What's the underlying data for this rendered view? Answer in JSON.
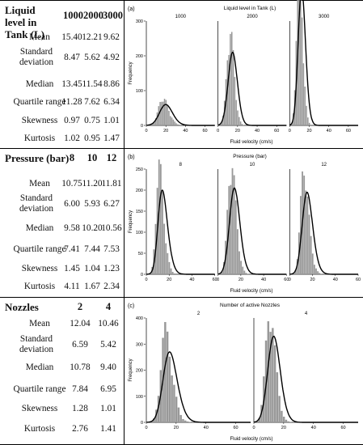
{
  "panels": [
    {
      "id": "tank",
      "table": {
        "header": "Liquid level in Tank (L)",
        "columns": [
          "1000",
          "2000",
          "3000"
        ],
        "rows": [
          {
            "label": "Mean",
            "values": [
              "15.40",
              "12.21",
              "9.62"
            ]
          },
          {
            "label": "Standard deviation",
            "values": [
              "8.47",
              "5.62",
              "4.92"
            ]
          },
          {
            "label": "Median",
            "values": [
              "13.45",
              "11.54",
              "8.86"
            ]
          },
          {
            "label": "Quartile range",
            "values": [
              "11.28",
              "7.62",
              "6.34"
            ]
          },
          {
            "label": "Skewness",
            "values": [
              "0.97",
              "0.75",
              "1.01"
            ]
          },
          {
            "label": "Kurtosis",
            "values": [
              "1.02",
              "0.95",
              "1.47"
            ]
          }
        ]
      }
    },
    {
      "id": "pressure",
      "table": {
        "header": "Pressure (bar)",
        "columns": [
          "8",
          "10",
          "12"
        ],
        "rows": [
          {
            "label": "Mean",
            "values": [
              "10.75",
              "11.20",
              "11.81"
            ]
          },
          {
            "label": "Standard deviation",
            "values": [
              "6.00",
              "5.93",
              "6.27"
            ]
          },
          {
            "label": "Median",
            "values": [
              "9.58",
              "10.20",
              "10.56"
            ]
          },
          {
            "label": "Quartile range",
            "values": [
              "7.41",
              "7.44",
              "7.53"
            ]
          },
          {
            "label": "Skewness",
            "values": [
              "1.45",
              "1.04",
              "1.23"
            ]
          },
          {
            "label": "Kurtosis",
            "values": [
              "4.11",
              "1.67",
              "2.34"
            ]
          }
        ]
      }
    },
    {
      "id": "nozzles",
      "table": {
        "header": "Nozzles",
        "columns": [
          "2",
          "4"
        ],
        "rows": [
          {
            "label": "Mean",
            "values": [
              "12.04",
              "10.46"
            ]
          },
          {
            "label": "Standard deviation",
            "values": [
              "6.59",
              "5.42"
            ]
          },
          {
            "label": "Median",
            "values": [
              "10.78",
              "9.40"
            ]
          },
          {
            "label": "Quartile range",
            "values": [
              "7.84",
              "6.95"
            ]
          },
          {
            "label": "Skewness",
            "values": [
              "1.28",
              "1.01"
            ]
          },
          {
            "label": "Kurtosis",
            "values": [
              "2.76",
              "1.41"
            ]
          }
        ]
      }
    }
  ],
  "chart_data": [
    {
      "type": "bar",
      "panel_label": "(a)",
      "title": "Liquid level in Tank (L)",
      "xlabel": "Fluid velocity (cm/s)",
      "ylabel": "Frequency",
      "ylim": [
        0,
        300
      ],
      "yticks": [
        0,
        100,
        200,
        300
      ],
      "xlim": [
        0,
        70
      ],
      "xticks": [
        0,
        20,
        40,
        60
      ],
      "facets": [
        {
          "label": "1000",
          "mean": 15.4,
          "sd": 8.47,
          "skew": 0.97,
          "peak": 60
        },
        {
          "label": "2000",
          "mean": 12.21,
          "sd": 5.62,
          "skew": 0.75,
          "peak": 210
        },
        {
          "label": "3000",
          "mean": 9.62,
          "sd": 4.92,
          "skew": 1.01,
          "peak": 390
        }
      ],
      "bar_color": "#999999",
      "curve_color": "#000000"
    },
    {
      "type": "bar",
      "panel_label": "(b)",
      "title": "Pressure (bar)",
      "xlabel": "Fluid velocity (cm/s)",
      "ylabel": "Frequency",
      "ylim": [
        0,
        250
      ],
      "yticks": [
        0,
        50,
        100,
        150,
        200,
        250
      ],
      "xlim": [
        0,
        60
      ],
      "xticks": [
        0,
        20,
        40,
        60
      ],
      "facets": [
        {
          "label": "8",
          "mean": 10.75,
          "sd": 6.0,
          "skew": 1.45,
          "peak": 200
        },
        {
          "label": "10",
          "mean": 11.2,
          "sd": 5.93,
          "skew": 1.04,
          "peak": 205
        },
        {
          "label": "12",
          "mean": 11.81,
          "sd": 6.27,
          "skew": 1.23,
          "peak": 195
        }
      ],
      "bar_color": "#999999",
      "curve_color": "#000000"
    },
    {
      "type": "bar",
      "panel_label": "(c)",
      "title": "Number of active Nozzles",
      "xlabel": "Fluid velocity (cm/s)",
      "ylabel": "Frequency",
      "ylim": [
        0,
        400
      ],
      "yticks": [
        0,
        100,
        200,
        300,
        400
      ],
      "xlim": [
        0,
        70
      ],
      "xticks": [
        0,
        20,
        40,
        60
      ],
      "facets": [
        {
          "label": "2",
          "mean": 12.04,
          "sd": 6.59,
          "skew": 1.28,
          "peak": 270
        },
        {
          "label": "4",
          "mean": 10.46,
          "sd": 5.42,
          "skew": 1.01,
          "peak": 330
        }
      ],
      "bar_color": "#999999",
      "curve_color": "#000000"
    }
  ]
}
